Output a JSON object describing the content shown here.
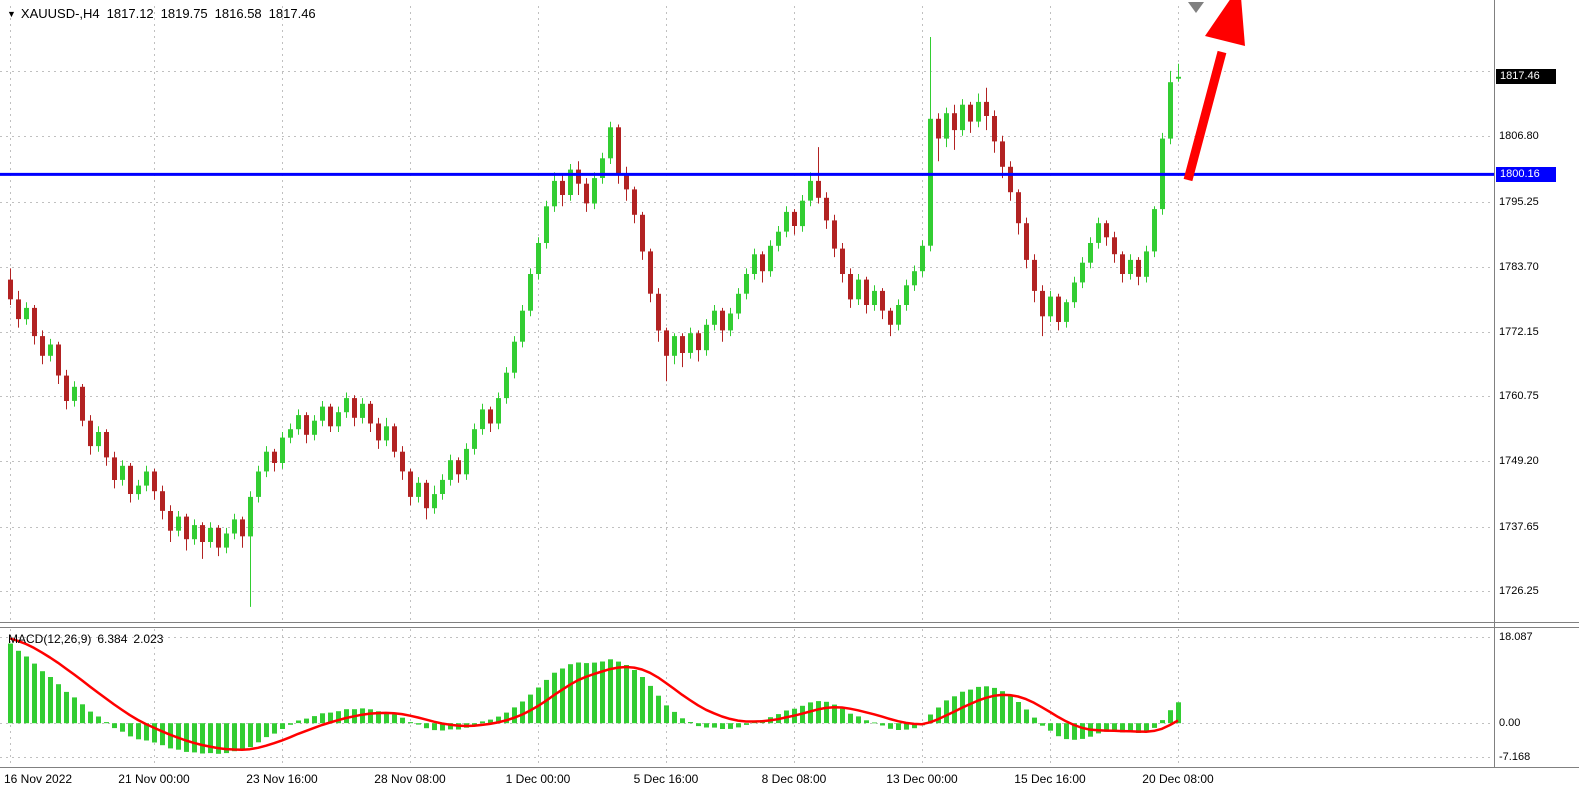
{
  "header": {
    "dropdown_icon": "▼",
    "symbol_period": "XAUUSD-,H4",
    "ohlc": {
      "open": "1817.12",
      "high": "1819.75",
      "low": "1816.58",
      "close": "1817.46"
    }
  },
  "price_scale": {
    "current_price_badge": {
      "text": "1817.46",
      "value": 1817.46,
      "bg": "#000000",
      "fg": "#FFFFFF"
    },
    "hline_badge": {
      "text": "1800.16",
      "value": 1800.16,
      "bg": "#0000FF",
      "fg": "#FFFFFF"
    },
    "tick_values": [
      1806.8,
      1795.25,
      1783.7,
      1772.15,
      1760.75,
      1749.2,
      1737.65,
      1726.25
    ],
    "grid_values": [
      1818.35,
      1806.8,
      1795.25,
      1783.7,
      1772.15,
      1760.75,
      1749.2,
      1737.65,
      1726.25
    ]
  },
  "time_scale": {
    "ticks": [
      {
        "label": "16 Nov 2022",
        "bar": 0
      },
      {
        "label": "21 Nov 00:00",
        "bar": 18
      },
      {
        "label": "23 Nov 16:00",
        "bar": 34
      },
      {
        "label": "28 Nov 08:00",
        "bar": 50
      },
      {
        "label": "1 Dec 00:00",
        "bar": 66
      },
      {
        "label": "5 Dec 16:00",
        "bar": 82
      },
      {
        "label": "8 Dec 08:00",
        "bar": 98
      },
      {
        "label": "13 Dec 00:00",
        "bar": 114
      },
      {
        "label": "15 Dec 16:00",
        "bar": 130
      },
      {
        "label": "20 Dec 08:00",
        "bar": 146
      }
    ]
  },
  "macd_panel": {
    "label": "MACD(12,26,9)",
    "macd_value": "6.384",
    "signal_value": "2.023",
    "ticks": [
      {
        "value": 18.087,
        "label": "18.087"
      },
      {
        "value": 0,
        "label": "0.00"
      },
      {
        "value": -7.168,
        "label": "-7.168"
      }
    ]
  },
  "annotations": {
    "horizontal_line": {
      "price": 1800.16,
      "color": "#0000FF",
      "width": 3
    },
    "trend_arrow": {
      "color": "#FF0000",
      "shaft": [
        [
          1188,
          180
        ],
        [
          1222,
          52
        ]
      ],
      "head": [
        [
          1240,
          -15
        ],
        [
          1245,
          46
        ],
        [
          1205,
          36
        ]
      ],
      "shaft_width": 9
    },
    "shift_marker": {
      "points": [
        [
          1188,
          2
        ],
        [
          1204,
          2
        ],
        [
          1196,
          13
        ]
      ],
      "color": "#808080"
    }
  },
  "colors": {
    "background": "#FFFFFF",
    "grid": "#C0C0C0",
    "bull": "#32CD32",
    "bear": "#B22222",
    "macd_histogram": "#32CD32",
    "macd_signal": "#FF0000",
    "separator": "#808080",
    "axis_text": "#000000"
  },
  "chart_data": {
    "type": "candlestick",
    "symbol": "XAUUSD-",
    "timeframe": "H4",
    "price_ylim": [
      1721,
      1830
    ],
    "macd_ylim": [
      -9,
      19.8
    ],
    "macd_params": {
      "fast": 12,
      "slow": 26,
      "signal": 9,
      "seed": 18.087
    },
    "current_bar": {
      "open": 1817.12,
      "high": 1819.75,
      "low": 1816.58,
      "close": 1817.46
    },
    "candles": [
      [
        1781.5,
        1783.5,
        1777.0,
        1778.0
      ],
      [
        1778.0,
        1779.5,
        1773.0,
        1774.5
      ],
      [
        1774.5,
        1777.5,
        1773.5,
        1776.5
      ],
      [
        1776.5,
        1777.0,
        1770.0,
        1771.5
      ],
      [
        1771.5,
        1772.5,
        1766.5,
        1768.0
      ],
      [
        1768.0,
        1771.0,
        1767.0,
        1770.0
      ],
      [
        1770.0,
        1770.5,
        1763.0,
        1764.5
      ],
      [
        1764.5,
        1765.5,
        1758.5,
        1760.0
      ],
      [
        1760.0,
        1763.5,
        1759.0,
        1762.5
      ],
      [
        1762.5,
        1763.0,
        1755.5,
        1756.5
      ],
      [
        1756.5,
        1757.5,
        1750.5,
        1752.0
      ],
      [
        1752.0,
        1755.5,
        1751.0,
        1754.5
      ],
      [
        1754.5,
        1755.0,
        1748.5,
        1750.0
      ],
      [
        1750.0,
        1751.0,
        1744.5,
        1746.0
      ],
      [
        1746.0,
        1749.5,
        1745.0,
        1748.5
      ],
      [
        1748.5,
        1749.0,
        1742.0,
        1743.5
      ],
      [
        1743.5,
        1746.0,
        1742.5,
        1745.0
      ],
      [
        1745.0,
        1748.5,
        1744.0,
        1747.5
      ],
      [
        1747.5,
        1748.0,
        1742.5,
        1744.0
      ],
      [
        1744.0,
        1745.0,
        1739.0,
        1740.5
      ],
      [
        1740.5,
        1741.5,
        1735.0,
        1737.0
      ],
      [
        1737.0,
        1740.5,
        1736.0,
        1739.5
      ],
      [
        1739.5,
        1740.0,
        1733.5,
        1735.5
      ],
      [
        1735.5,
        1739.0,
        1734.5,
        1738.0
      ],
      [
        1738.0,
        1738.5,
        1732.0,
        1735.0
      ],
      [
        1735.0,
        1738.5,
        1734.0,
        1737.5
      ],
      [
        1737.5,
        1738.0,
        1732.5,
        1734.0
      ],
      [
        1734.0,
        1737.5,
        1733.0,
        1736.5
      ],
      [
        1736.5,
        1740.0,
        1735.5,
        1739.0
      ],
      [
        1739.0,
        1739.5,
        1734.0,
        1736.0
      ],
      [
        1736.0,
        1744.0,
        1723.5,
        1743.0
      ],
      [
        1743.0,
        1748.5,
        1742.0,
        1747.5
      ],
      [
        1747.5,
        1752.0,
        1746.5,
        1751.0
      ],
      [
        1751.0,
        1751.5,
        1747.5,
        1749.0
      ],
      [
        1749.0,
        1754.5,
        1748.0,
        1753.5
      ],
      [
        1753.5,
        1756.0,
        1752.5,
        1755.0
      ],
      [
        1755.0,
        1758.5,
        1754.0,
        1757.5
      ],
      [
        1757.5,
        1758.0,
        1752.5,
        1754.0
      ],
      [
        1754.0,
        1757.5,
        1753.0,
        1756.5
      ],
      [
        1756.5,
        1760.0,
        1755.5,
        1759.0
      ],
      [
        1759.0,
        1759.5,
        1754.5,
        1755.5
      ],
      [
        1755.5,
        1759.0,
        1754.5,
        1758.0
      ],
      [
        1758.0,
        1761.5,
        1757.0,
        1760.5
      ],
      [
        1760.5,
        1761.0,
        1755.5,
        1757.0
      ],
      [
        1757.0,
        1760.5,
        1756.0,
        1759.5
      ],
      [
        1759.5,
        1760.0,
        1754.5,
        1756.0
      ],
      [
        1756.0,
        1757.0,
        1751.5,
        1753.0
      ],
      [
        1753.0,
        1757.0,
        1752.0,
        1755.5
      ],
      [
        1755.5,
        1756.0,
        1750.0,
        1751.0
      ],
      [
        1751.0,
        1752.0,
        1746.0,
        1747.5
      ],
      [
        1747.5,
        1748.0,
        1741.5,
        1743.0
      ],
      [
        1743.0,
        1746.5,
        1742.0,
        1745.5
      ],
      [
        1745.5,
        1746.0,
        1739.0,
        1741.0
      ],
      [
        1741.0,
        1745.0,
        1740.0,
        1743.5
      ],
      [
        1743.5,
        1747.0,
        1742.5,
        1746.0
      ],
      [
        1746.0,
        1750.5,
        1745.0,
        1749.5
      ],
      [
        1749.5,
        1750.0,
        1745.5,
        1747.0
      ],
      [
        1747.0,
        1752.5,
        1746.0,
        1751.5
      ],
      [
        1751.5,
        1756.0,
        1750.5,
        1755.0
      ],
      [
        1755.0,
        1759.5,
        1754.0,
        1758.5
      ],
      [
        1758.5,
        1759.0,
        1754.5,
        1756.0
      ],
      [
        1756.0,
        1761.5,
        1755.0,
        1760.5
      ],
      [
        1760.5,
        1766.0,
        1759.5,
        1765.0
      ],
      [
        1765.0,
        1771.5,
        1764.0,
        1770.5
      ],
      [
        1770.5,
        1777.0,
        1769.5,
        1776.0
      ],
      [
        1776.0,
        1783.5,
        1775.0,
        1782.5
      ],
      [
        1782.5,
        1789.0,
        1781.5,
        1788.0
      ],
      [
        1788.0,
        1795.5,
        1787.0,
        1794.5
      ],
      [
        1794.5,
        1800.5,
        1793.5,
        1799.0
      ],
      [
        1799.0,
        1800.0,
        1794.5,
        1796.5
      ],
      [
        1796.5,
        1802.0,
        1795.5,
        1801.0
      ],
      [
        1801.0,
        1802.5,
        1796.5,
        1798.5
      ],
      [
        1798.5,
        1799.5,
        1793.5,
        1795.0
      ],
      [
        1795.0,
        1800.5,
        1794.0,
        1799.5
      ],
      [
        1799.5,
        1804.0,
        1798.5,
        1803.0
      ],
      [
        1803.0,
        1809.5,
        1802.0,
        1808.5
      ],
      [
        1808.5,
        1809.0,
        1798.5,
        1800.0
      ],
      [
        1800.0,
        1801.5,
        1795.5,
        1797.5
      ],
      [
        1797.5,
        1798.0,
        1791.5,
        1793.0
      ],
      [
        1793.0,
        1793.5,
        1785.0,
        1786.5
      ],
      [
        1786.5,
        1787.0,
        1777.5,
        1779.0
      ],
      [
        1779.0,
        1780.0,
        1770.5,
        1772.5
      ],
      [
        1772.5,
        1773.0,
        1763.5,
        1768.0
      ],
      [
        1768.0,
        1772.0,
        1766.5,
        1771.5
      ],
      [
        1771.5,
        1772.0,
        1766.0,
        1768.5
      ],
      [
        1768.5,
        1773.0,
        1767.5,
        1772.0
      ],
      [
        1772.0,
        1772.5,
        1767.0,
        1769.0
      ],
      [
        1769.0,
        1774.5,
        1768.0,
        1773.5
      ],
      [
        1773.5,
        1777.0,
        1772.5,
        1776.0
      ],
      [
        1776.0,
        1776.5,
        1770.5,
        1772.5
      ],
      [
        1772.5,
        1776.5,
        1771.5,
        1775.5
      ],
      [
        1775.5,
        1780.0,
        1774.5,
        1779.0
      ],
      [
        1779.0,
        1783.5,
        1778.0,
        1782.5
      ],
      [
        1782.5,
        1787.0,
        1781.5,
        1786.0
      ],
      [
        1786.0,
        1786.5,
        1781.0,
        1783.0
      ],
      [
        1783.0,
        1788.5,
        1782.0,
        1787.5
      ],
      [
        1787.5,
        1791.0,
        1786.5,
        1790.0
      ],
      [
        1790.0,
        1794.5,
        1789.0,
        1793.5
      ],
      [
        1793.5,
        1794.0,
        1789.5,
        1791.0
      ],
      [
        1791.0,
        1796.5,
        1790.0,
        1795.5
      ],
      [
        1795.5,
        1800.5,
        1794.5,
        1799.0
      ],
      [
        1799.0,
        1805.0,
        1795.0,
        1796.0
      ],
      [
        1796.0,
        1797.0,
        1790.5,
        1792.0
      ],
      [
        1792.0,
        1793.0,
        1785.5,
        1787.0
      ],
      [
        1787.0,
        1788.0,
        1781.0,
        1782.5
      ],
      [
        1782.5,
        1783.5,
        1776.5,
        1778.0
      ],
      [
        1778.0,
        1782.5,
        1777.0,
        1781.5
      ],
      [
        1781.5,
        1782.0,
        1775.5,
        1777.0
      ],
      [
        1777.0,
        1780.5,
        1776.0,
        1779.5
      ],
      [
        1779.5,
        1780.0,
        1774.5,
        1776.0
      ],
      [
        1776.0,
        1776.5,
        1771.5,
        1773.5
      ],
      [
        1773.5,
        1778.0,
        1772.5,
        1777.0
      ],
      [
        1777.0,
        1781.5,
        1776.0,
        1780.5
      ],
      [
        1780.5,
        1784.0,
        1779.5,
        1783.0
      ],
      [
        1783.0,
        1788.5,
        1782.0,
        1787.5
      ],
      [
        1787.5,
        1824.5,
        1786.5,
        1810.0
      ],
      [
        1810.0,
        1811.0,
        1802.5,
        1806.5
      ],
      [
        1806.5,
        1812.0,
        1805.0,
        1811.0
      ],
      [
        1811.0,
        1812.5,
        1804.5,
        1808.0
      ],
      [
        1808.0,
        1813.5,
        1807.0,
        1812.5
      ],
      [
        1812.5,
        1813.0,
        1807.5,
        1809.5
      ],
      [
        1809.5,
        1814.5,
        1808.5,
        1813.0
      ],
      [
        1813.0,
        1815.5,
        1808.0,
        1810.5
      ],
      [
        1810.5,
        1811.5,
        1804.0,
        1806.0
      ],
      [
        1806.0,
        1807.0,
        1799.5,
        1801.5
      ],
      [
        1801.5,
        1802.5,
        1795.5,
        1797.0
      ],
      [
        1797.0,
        1797.5,
        1789.5,
        1791.5
      ],
      [
        1791.5,
        1792.5,
        1783.5,
        1785.0
      ],
      [
        1785.0,
        1786.0,
        1777.5,
        1779.5
      ],
      [
        1779.5,
        1780.5,
        1771.5,
        1775.0
      ],
      [
        1775.0,
        1779.5,
        1774.0,
        1778.5
      ],
      [
        1778.5,
        1779.0,
        1772.5,
        1774.0
      ],
      [
        1774.0,
        1778.0,
        1773.0,
        1777.5
      ],
      [
        1777.5,
        1782.0,
        1776.5,
        1781.0
      ],
      [
        1781.0,
        1785.5,
        1780.0,
        1784.5
      ],
      [
        1784.5,
        1789.0,
        1783.5,
        1788.0
      ],
      [
        1788.0,
        1792.5,
        1787.0,
        1791.5
      ],
      [
        1791.5,
        1792.0,
        1787.5,
        1789.0
      ],
      [
        1789.0,
        1790.0,
        1784.5,
        1786.0
      ],
      [
        1786.0,
        1786.5,
        1781.0,
        1782.5
      ],
      [
        1782.5,
        1786.0,
        1781.5,
        1785.0
      ],
      [
        1785.0,
        1785.5,
        1780.5,
        1782.0
      ],
      [
        1782.0,
        1787.5,
        1781.0,
        1786.5
      ],
      [
        1786.5,
        1794.5,
        1785.5,
        1794.0
      ],
      [
        1794.0,
        1807.5,
        1793.0,
        1806.5
      ],
      [
        1806.5,
        1818.5,
        1805.5,
        1816.5
      ],
      [
        1817.12,
        1819.75,
        1816.58,
        1817.46
      ]
    ]
  }
}
